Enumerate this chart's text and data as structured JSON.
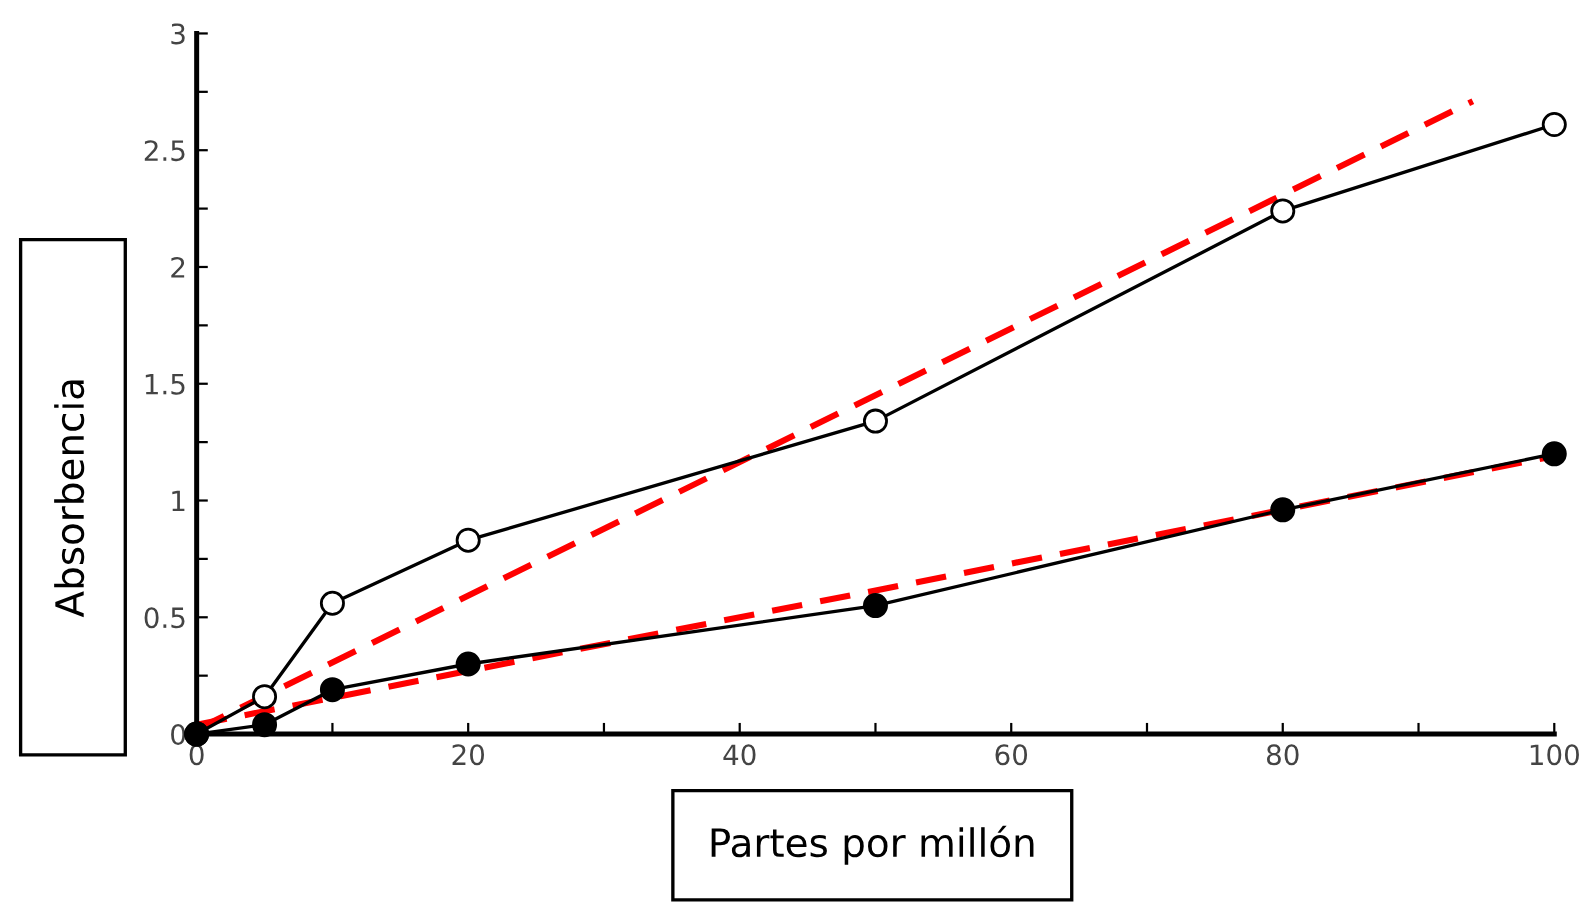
{
  "chart_data": {
    "type": "line",
    "xlabel": "Partes por millón",
    "ylabel": "Absorbencia",
    "x": [
      0,
      5,
      10,
      20,
      50,
      80,
      100
    ],
    "series": [
      {
        "color": "#ffffff",
        "values": [
          0,
          0.16,
          0.56,
          0.83,
          1.34,
          2.24,
          2.61
        ]
      },
      {
        "color": "#000000",
        "values": [
          0,
          0.04,
          0.19,
          0.3,
          0.55,
          0.96,
          1.2
        ]
      },
      {
        "color": "#ff0000",
        "x": [
          0,
          94
        ],
        "values": [
          0.02,
          2.71
        ],
        "marker": "none",
        "line_style": "dashed"
      },
      {
        "color": "#ff0000",
        "x": [
          0,
          100
        ],
        "values": [
          0.04,
          1.19
        ],
        "marker": "none",
        "line_style": "dashed"
      }
    ],
    "marker": "circle",
    "line_style": "solid",
    "grid": false,
    "legend": false,
    "xlim": [
      0,
      100
    ],
    "ylim": [
      0,
      3
    ],
    "xticks": [
      0,
      {
        "value": 10,
        "label": null
      },
      20,
      {
        "value": 30,
        "label": null
      },
      40,
      {
        "value": 50,
        "label": null
      },
      60,
      {
        "value": 70,
        "label": null
      },
      80,
      {
        "value": 90,
        "label": null
      },
      100
    ],
    "yticks": [
      0,
      {
        "value": 0.25,
        "label": null
      },
      0.5,
      {
        "value": 0.75,
        "label": null
      },
      1,
      {
        "value": 1.25,
        "label": null
      },
      1.5,
      {
        "value": 1.75,
        "label": null
      },
      2,
      {
        "value": 2.25,
        "label": null
      },
      2.5,
      {
        "value": 2.75,
        "label": null
      },
      3
    ]
  }
}
